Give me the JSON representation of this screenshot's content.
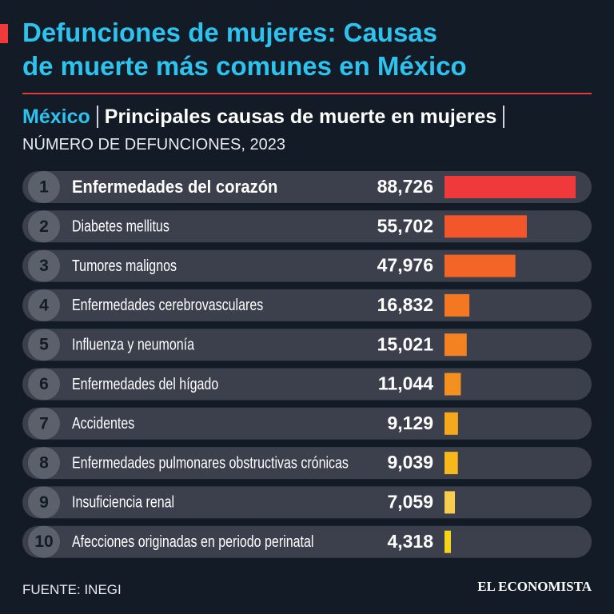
{
  "chart_data": {
    "type": "bar",
    "title_lines": [
      "Defunciones de mujeres: Causas",
      "de muerte más comunes en México"
    ],
    "place": "México",
    "subtitle": "Principales causas de muerte en mujeres",
    "unit": "NÚMERO DE DEFUNCIONES, 2023",
    "ranks": [
      1,
      2,
      3,
      4,
      5,
      6,
      7,
      8,
      9,
      10
    ],
    "categories": [
      "Enfermedades del corazón",
      "Diabetes mellitus",
      "Tumores malignos",
      "Enfermedades cerebrovasculares",
      "Influenza y neumonía",
      "Enfermedades del hígado",
      "Accidentes",
      "Enfermedades pulmonares obstructivas crónicas",
      "Insuficiencia renal",
      "Afecciones originadas en periodo perinatal"
    ],
    "values": [
      88726,
      55702,
      47976,
      16832,
      15021,
      11044,
      9129,
      9039,
      7059,
      4318
    ],
    "value_labels": [
      "88,726",
      "55,702",
      "47,976",
      "16,832",
      "15,021",
      "11,044",
      "9,129",
      "9,039",
      "7,059",
      "4,318"
    ],
    "colors": [
      "#f0393a",
      "#f2562a",
      "#f26524",
      "#f47822",
      "#f48220",
      "#f4901f",
      "#f6a81c",
      "#f7b81b",
      "#f8cc4e",
      "#f5d51a"
    ],
    "source": "FUENTE: INEGI",
    "brand": "EL ECONOMISTA"
  }
}
